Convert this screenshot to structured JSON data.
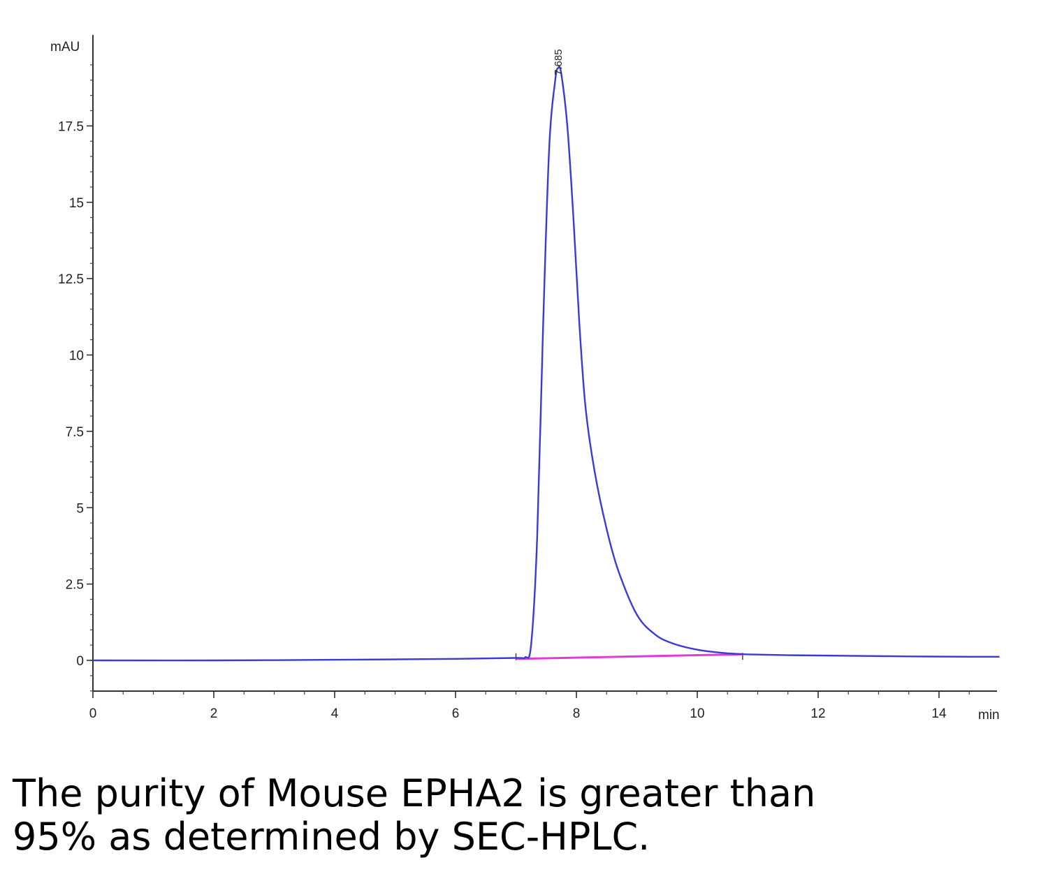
{
  "chart_data": {
    "type": "line",
    "title": "",
    "xlabel": "",
    "ylabel": "",
    "x_unit": "min",
    "y_unit": "mAU",
    "xlim": [
      0,
      15
    ],
    "ylim": [
      -2,
      20
    ],
    "x_ticks": [
      0,
      2,
      4,
      6,
      8,
      10,
      12,
      14
    ],
    "x_tick_labels": [
      "0",
      "2",
      "4",
      "6",
      "8",
      "10",
      "12",
      "14"
    ],
    "y_ticks": [
      0,
      2.5,
      5,
      7.5,
      10,
      12.5,
      15,
      17.5
    ],
    "y_tick_labels": [
      "0",
      "2.5",
      "5",
      "7.5",
      "10",
      "12.5",
      "15",
      "17.5"
    ],
    "grid": false,
    "series": [
      {
        "color": "#3a3ad6",
        "x": [
          0,
          2,
          4,
          6,
          7.0,
          7.15,
          7.25,
          7.35,
          7.45,
          7.55,
          7.65,
          7.7,
          7.75,
          7.85,
          7.95,
          8.05,
          8.15,
          8.3,
          8.5,
          8.7,
          9.0,
          9.3,
          9.6,
          10.0,
          10.4,
          10.8,
          11.5,
          12.5,
          13.5,
          14.5,
          15
        ],
        "y": [
          0.0,
          0.0,
          0.02,
          0.05,
          0.08,
          0.1,
          0.5,
          4.0,
          11.0,
          16.8,
          19.0,
          19.4,
          19.2,
          17.5,
          14.5,
          11.0,
          8.3,
          6.2,
          4.3,
          2.9,
          1.5,
          0.85,
          0.55,
          0.35,
          0.25,
          0.2,
          0.17,
          0.15,
          0.13,
          0.12,
          0.12
        ]
      }
    ],
    "baseline": {
      "color": "#e23ad9",
      "x": [
        7.0,
        10.75
      ],
      "y": [
        0.05,
        0.2
      ]
    },
    "peaks": [
      {
        "x": 7.685,
        "label": "7.685"
      }
    ]
  },
  "caption": {
    "line1": "The purity of Mouse EPHA2 is greater than",
    "line2": "95% as determined by SEC-HPLC."
  }
}
